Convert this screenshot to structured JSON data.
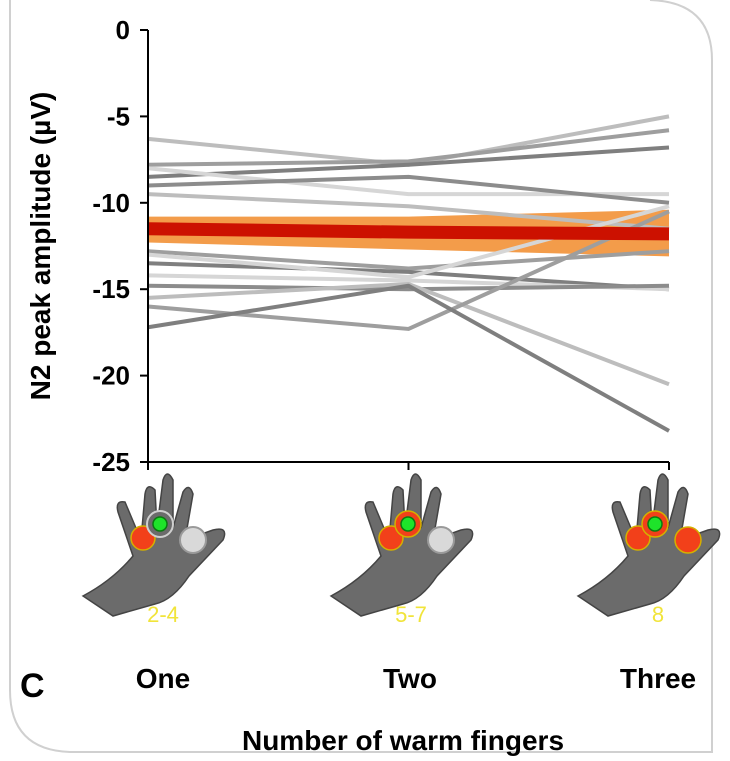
{
  "panel_label": "C",
  "colors": {
    "participant_lines": [
      "#bdbdbd",
      "#9e9e9e",
      "#7f7f7f",
      "#d6d6d6",
      "#8c8c8c"
    ],
    "mean_line": "#cc1100",
    "ci_band": "#f39c4a",
    "hand": "#6b6b6b",
    "warm_marker": "#f2401a",
    "target_marker": "#1ee32a",
    "count_text": "#f1e43a"
  },
  "chart_data": {
    "type": "line",
    "title": "",
    "xlabel": "Number of warm fingers",
    "ylabel": "N2 peak amplitude (µV)",
    "categories": [
      "One",
      "Two",
      "Three"
    ],
    "ylim": [
      -25,
      0
    ],
    "yticks": [
      "0",
      "-5",
      "-10",
      "-15",
      "-20",
      "-25"
    ],
    "grid": false,
    "legend": "none",
    "participants": [
      {
        "values": [
          -6.3,
          -7.8,
          -5.0
        ]
      },
      {
        "values": [
          -7.8,
          -7.6,
          -5.8
        ]
      },
      {
        "values": [
          -8.5,
          -7.8,
          -6.8
        ]
      },
      {
        "values": [
          -8.0,
          -9.5,
          -9.5
        ]
      },
      {
        "values": [
          -9.0,
          -8.5,
          -10.0
        ]
      },
      {
        "values": [
          -9.5,
          -10.2,
          -11.5
        ]
      },
      {
        "values": [
          -12.8,
          -13.8,
          -12.8
        ]
      },
      {
        "values": [
          -13.5,
          -14.0,
          -15.0
        ]
      },
      {
        "values": [
          -14.2,
          -14.5,
          -15.0
        ]
      },
      {
        "values": [
          -14.8,
          -15.0,
          -14.8
        ]
      },
      {
        "values": [
          -15.5,
          -14.7,
          -20.5
        ]
      },
      {
        "values": [
          -16.0,
          -17.3,
          -10.5
        ]
      },
      {
        "values": [
          -17.2,
          -14.8,
          -23.2
        ]
      },
      {
        "values": [
          -13.0,
          -14.3,
          -10.2
        ]
      }
    ],
    "mean": {
      "values": [
        -11.5,
        -11.7,
        -11.8
      ]
    },
    "ci_lower": [
      -12.3,
      -12.7,
      -13.1
    ],
    "ci_upper": [
      -10.8,
      -10.8,
      -10.4
    ],
    "hand_labels": [
      "2-4",
      "5-7",
      "8"
    ]
  }
}
